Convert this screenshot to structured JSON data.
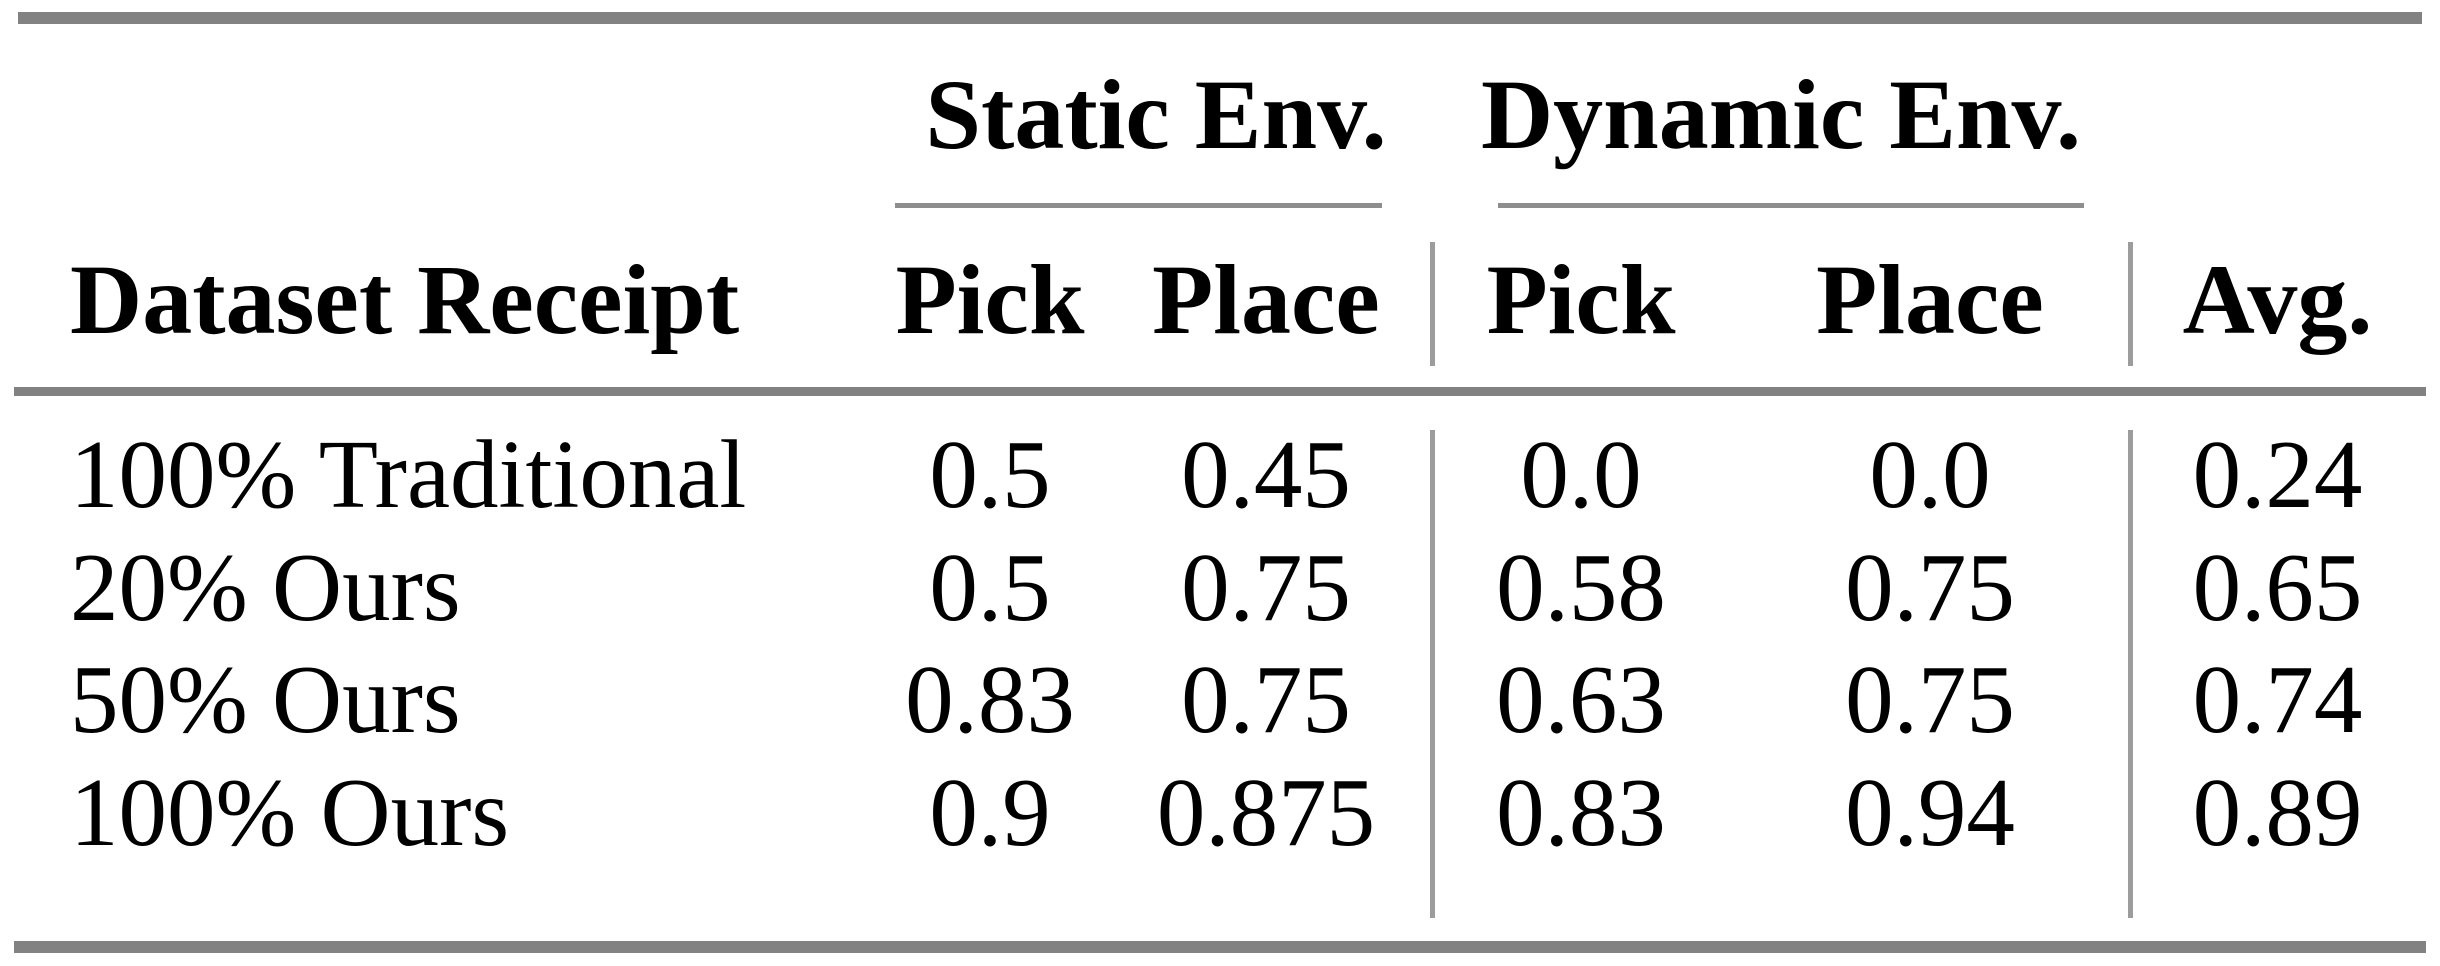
{
  "table": {
    "title": "results-table",
    "groups": [
      {
        "label": "Static Env."
      },
      {
        "label": "Dynamic Env."
      }
    ],
    "columns": {
      "label": "Dataset Receipt",
      "static_pick": "Pick",
      "static_place": "Place",
      "dynamic_pick": "Pick",
      "dynamic_place": "Place",
      "avg": "Avg."
    },
    "rows": [
      {
        "label": "100% Traditional",
        "values": [
          "0.5",
          "0.45",
          "0.0",
          "0.0",
          "0.24"
        ]
      },
      {
        "label": "20% Ours",
        "values": [
          "0.5",
          "0.75",
          "0.58",
          "0.75",
          "0.65"
        ]
      },
      {
        "label": "50% Ours",
        "values": [
          "0.83",
          "0.75",
          "0.63",
          "0.75",
          "0.74"
        ]
      },
      {
        "label": "100% Ours",
        "values": [
          "0.9",
          "0.875",
          "0.83",
          "0.94",
          "0.89"
        ]
      }
    ],
    "colors": {
      "text": "#000000",
      "background": "#ffffff",
      "heavy_rule": "#828282",
      "cmidrule": "#8e8e8e",
      "vertical_divider": "#9c9c9c"
    }
  },
  "chart_data": {
    "type": "table",
    "title": "",
    "column_groups": [
      "",
      "Static Env.",
      "Static Env.",
      "Dynamic Env.",
      "Dynamic Env.",
      ""
    ],
    "columns": [
      "Dataset Receipt",
      "Pick",
      "Place",
      "Pick",
      "Place",
      "Avg."
    ],
    "rows": [
      [
        "100% Traditional",
        0.5,
        0.45,
        0.0,
        0.0,
        0.24
      ],
      [
        "20% Ours",
        0.5,
        0.75,
        0.58,
        0.75,
        0.65
      ],
      [
        "50% Ours",
        0.83,
        0.75,
        0.63,
        0.75,
        0.74
      ],
      [
        "100% Ours",
        0.9,
        0.875,
        0.83,
        0.94,
        0.89
      ]
    ]
  }
}
